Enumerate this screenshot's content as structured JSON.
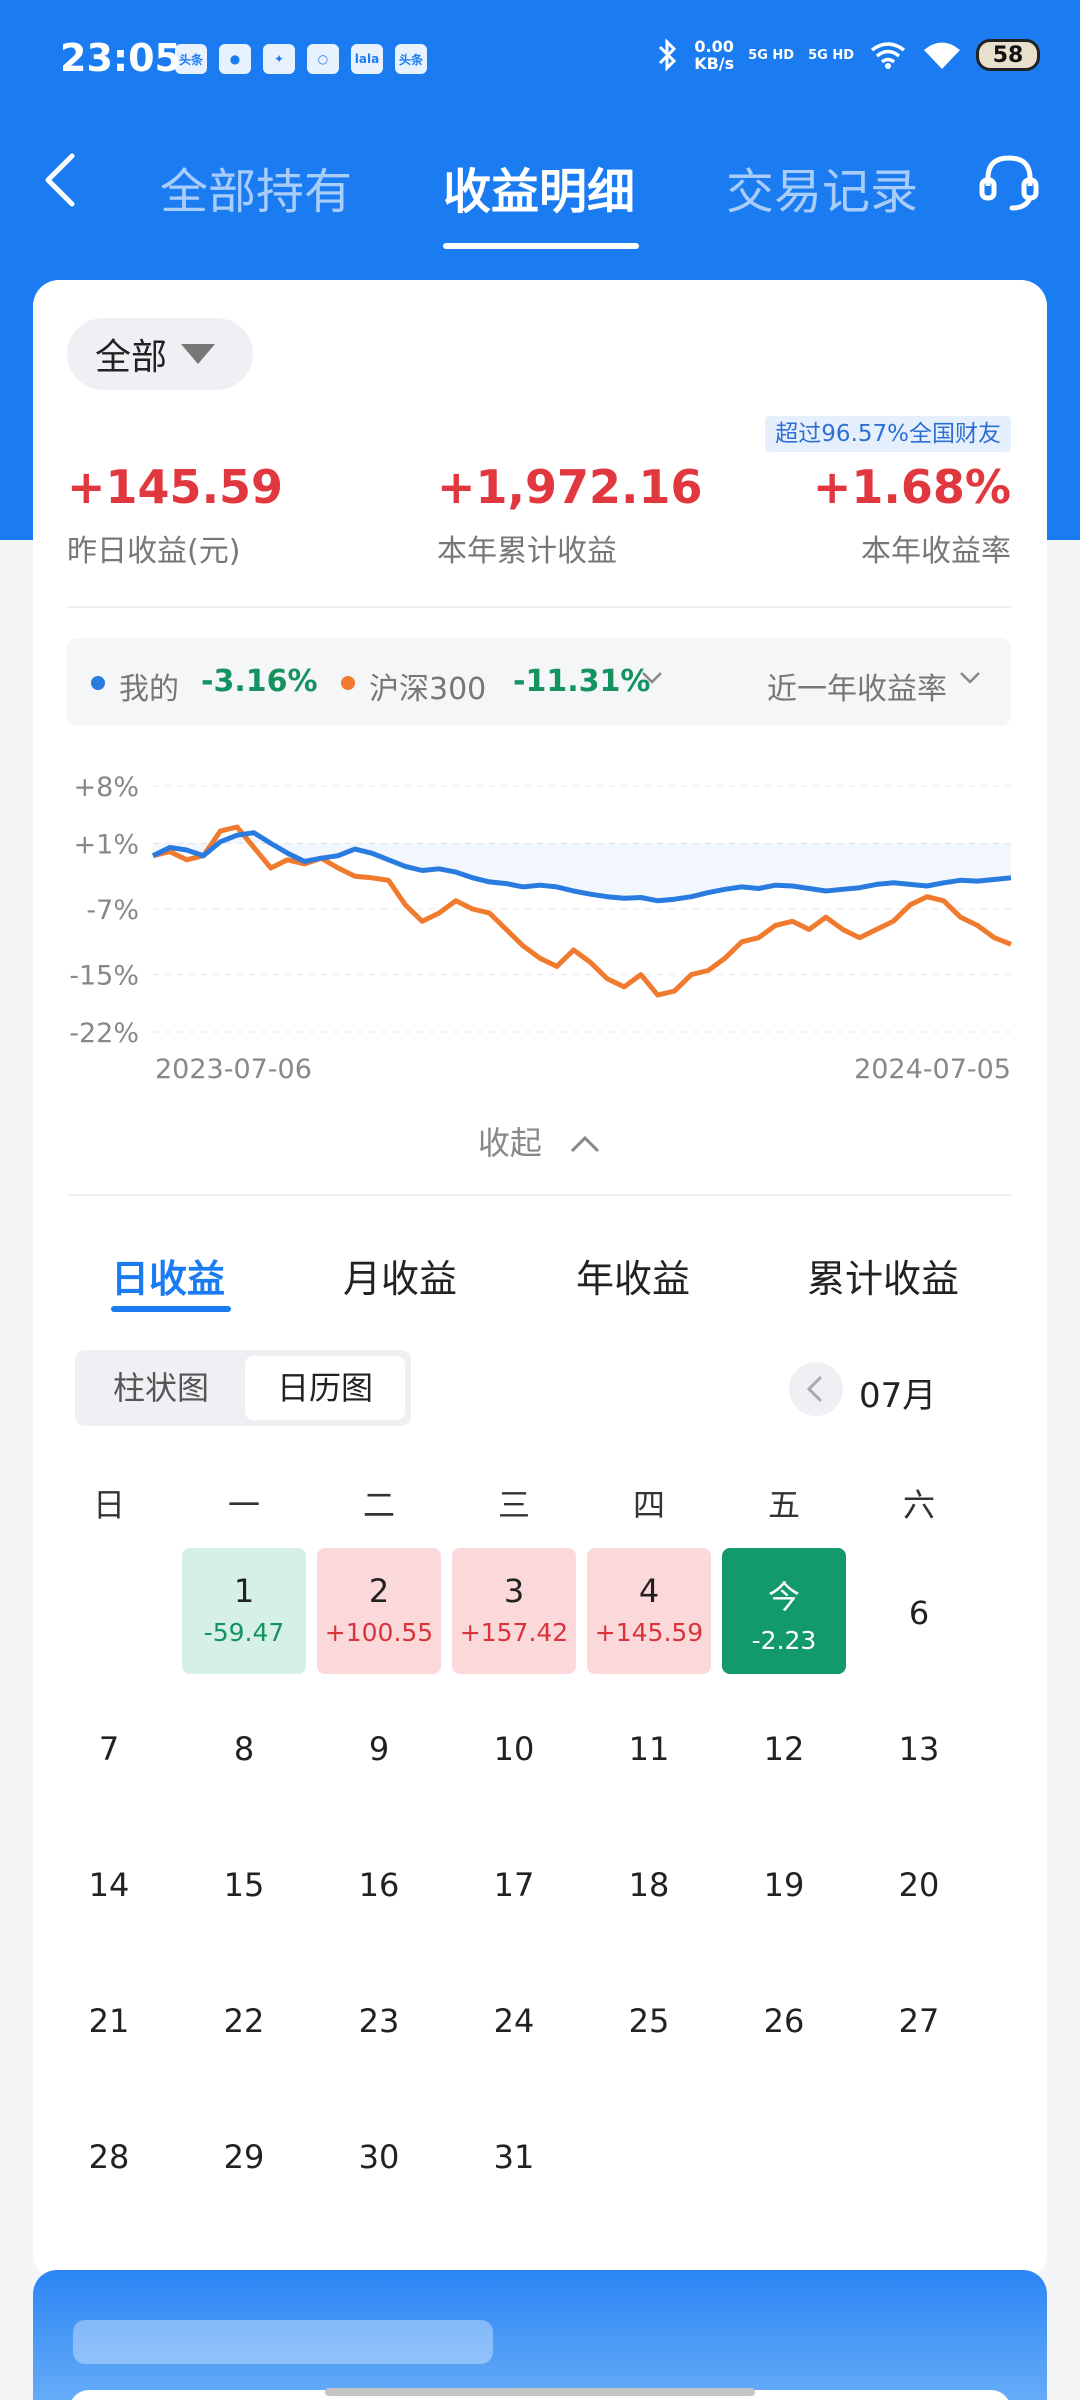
{
  "status_bar": {
    "time": "23:05",
    "app_icons": [
      "头条",
      "●",
      "✦",
      "○",
      "lala",
      "头条"
    ],
    "speed_line1": "0.00",
    "speed_line2": "KB/s",
    "net1": "5G HD",
    "net2": "5G HD",
    "battery": "58"
  },
  "nav": {
    "tabs": [
      "全部持有",
      "收益明细",
      "交易记录"
    ],
    "active_tab": 1
  },
  "summary": {
    "filter": "全部",
    "rank_badge": "超过96.57%全国财友",
    "stats": [
      {
        "value": "+145.59",
        "label": "昨日收益(元)"
      },
      {
        "value": "+1,972.16",
        "label": "本年累计收益"
      },
      {
        "value": "+1.68%",
        "label": "本年收益率"
      }
    ]
  },
  "legend": {
    "mine_label": "我的",
    "mine_value": "-3.16%",
    "index_label": "沪深300",
    "index_value": "-11.31%",
    "period": "近一年收益率"
  },
  "chart_data": {
    "type": "line",
    "x_start": "2023-07-06",
    "x_end": "2024-07-05",
    "y_ticks": [
      "+8%",
      "+1%",
      "-7%",
      "-15%",
      "-22%"
    ],
    "ylim": [
      -22,
      8
    ],
    "colors": {
      "mine": "#2a7be0",
      "index": "#f07a2e"
    },
    "series": [
      {
        "name": "我的",
        "values": [
          -0.5,
          0.5,
          0.2,
          -0.5,
          1.2,
          2.0,
          2.3,
          1.0,
          -0.2,
          -1.2,
          -0.8,
          -0.5,
          0.3,
          -0.2,
          -1.0,
          -1.8,
          -2.3,
          -2.1,
          -2.5,
          -3.2,
          -3.7,
          -3.9,
          -4.3,
          -4.1,
          -4.3,
          -4.8,
          -5.2,
          -5.5,
          -5.7,
          -5.6,
          -6.0,
          -5.8,
          -5.5,
          -5.0,
          -4.6,
          -4.3,
          -4.5,
          -4.1,
          -4.2,
          -4.5,
          -4.8,
          -4.6,
          -4.4,
          -4.0,
          -3.8,
          -4.0,
          -4.2,
          -3.8,
          -3.5,
          -3.6,
          -3.4,
          -3.2
        ]
      },
      {
        "name": "沪深300",
        "values": [
          -0.5,
          0.0,
          -1.0,
          -0.5,
          2.5,
          3.0,
          0.5,
          -2.0,
          -1.0,
          -1.5,
          -0.8,
          -2.0,
          -3.0,
          -3.2,
          -3.5,
          -6.5,
          -8.5,
          -7.5,
          -6.0,
          -7.0,
          -7.5,
          -9.5,
          -11.5,
          -13.0,
          -14.0,
          -12.0,
          -13.5,
          -15.5,
          -16.5,
          -15.0,
          -17.5,
          -17.0,
          -15.0,
          -14.5,
          -13.0,
          -11.0,
          -10.5,
          -9.0,
          -8.5,
          -9.5,
          -8.0,
          -9.5,
          -10.5,
          -9.5,
          -8.5,
          -6.5,
          -5.5,
          -6.0,
          -8.0,
          -9.0,
          -10.5,
          -11.3
        ]
      }
    ]
  },
  "collapse_label": "收起",
  "period_tabs": [
    "日收益",
    "月收益",
    "年收益",
    "累计收益"
  ],
  "active_period_tab": 0,
  "segment": {
    "items": [
      "柱状图",
      "日历图"
    ],
    "active": 1
  },
  "month_label": "07月",
  "calendar": {
    "weekdays": [
      "日",
      "一",
      "二",
      "三",
      "四",
      "五",
      "六"
    ],
    "days": [
      {
        "col": 1,
        "row": 0,
        "label": "1",
        "value": "-59.47",
        "kind": "neg"
      },
      {
        "col": 2,
        "row": 0,
        "label": "2",
        "value": "+100.55",
        "kind": "pos"
      },
      {
        "col": 3,
        "row": 0,
        "label": "3",
        "value": "+157.42",
        "kind": "pos"
      },
      {
        "col": 4,
        "row": 0,
        "label": "4",
        "value": "+145.59",
        "kind": "pos"
      },
      {
        "col": 5,
        "row": 0,
        "label": "今",
        "value": "-2.23",
        "kind": "today"
      },
      {
        "col": 6,
        "row": 0,
        "label": "6"
      },
      {
        "col": 0,
        "row": 1,
        "label": "7"
      },
      {
        "col": 1,
        "row": 1,
        "label": "8"
      },
      {
        "col": 2,
        "row": 1,
        "label": "9"
      },
      {
        "col": 3,
        "row": 1,
        "label": "10"
      },
      {
        "col": 4,
        "row": 1,
        "label": "11"
      },
      {
        "col": 5,
        "row": 1,
        "label": "12"
      },
      {
        "col": 6,
        "row": 1,
        "label": "13"
      },
      {
        "col": 0,
        "row": 2,
        "label": "14"
      },
      {
        "col": 1,
        "row": 2,
        "label": "15"
      },
      {
        "col": 2,
        "row": 2,
        "label": "16"
      },
      {
        "col": 3,
        "row": 2,
        "label": "17"
      },
      {
        "col": 4,
        "row": 2,
        "label": "18"
      },
      {
        "col": 5,
        "row": 2,
        "label": "19"
      },
      {
        "col": 6,
        "row": 2,
        "label": "20"
      },
      {
        "col": 0,
        "row": 3,
        "label": "21"
      },
      {
        "col": 1,
        "row": 3,
        "label": "22"
      },
      {
        "col": 2,
        "row": 3,
        "label": "23"
      },
      {
        "col": 3,
        "row": 3,
        "label": "24"
      },
      {
        "col": 4,
        "row": 3,
        "label": "25"
      },
      {
        "col": 5,
        "row": 3,
        "label": "26"
      },
      {
        "col": 6,
        "row": 3,
        "label": "27"
      },
      {
        "col": 0,
        "row": 4,
        "label": "28"
      },
      {
        "col": 1,
        "row": 4,
        "label": "29"
      },
      {
        "col": 2,
        "row": 4,
        "label": "30"
      },
      {
        "col": 3,
        "row": 4,
        "label": "31"
      }
    ]
  }
}
